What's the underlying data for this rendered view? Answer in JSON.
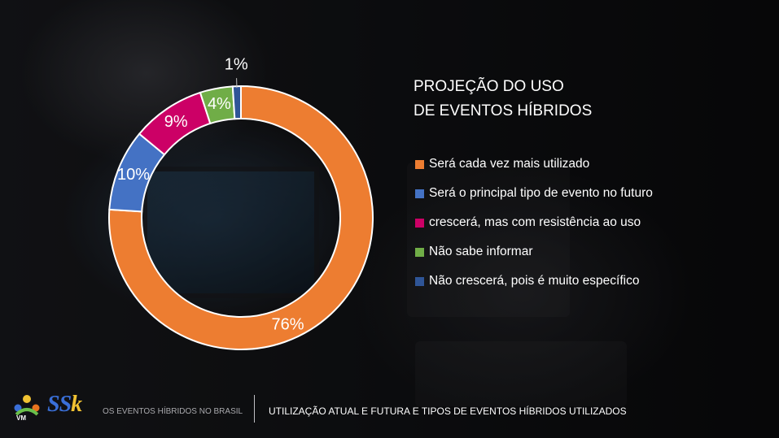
{
  "slide": {
    "footer_left": "OS EVENTOS HÍBRIDOS NO BRASIL",
    "footer_right": "UTILIZAÇÃO ATUAL E FUTURA E TIPOS DE EVENTOS HÍBRIDOS UTILIZADOS",
    "logo_vm_text": "VM",
    "logo_ssk_text": "SSk"
  },
  "chart_data": {
    "type": "pie",
    "style": "donut",
    "title_lines": [
      "PROJEÇÃO DO USO",
      "DE EVENTOS HÍBRIDOS"
    ],
    "legend_position": "right",
    "series": [
      {
        "name": "Será cada vez mais utilizado",
        "value": 76,
        "label": "76%",
        "color": "#ed7d31"
      },
      {
        "name": "Será o principal tipo de evento no futuro",
        "value": 10,
        "label": "10%",
        "color": "#4472c4"
      },
      {
        "name": "crescerá, mas com resistência ao uso",
        "value": 9,
        "label": "9%",
        "color": "#cc0066"
      },
      {
        "name": "Não sabe informar",
        "value": 4,
        "label": "4%",
        "color": "#70ad47"
      },
      {
        "name": "Não crescerá, pois é muito específico",
        "value": 1,
        "label": "1%",
        "color": "#2f5597"
      }
    ]
  }
}
